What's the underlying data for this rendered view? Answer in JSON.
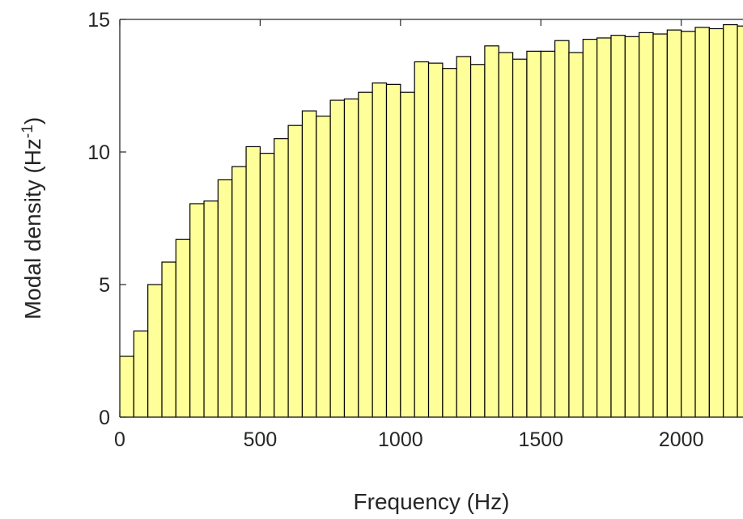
{
  "chart_data": {
    "type": "bar",
    "title": "",
    "xlabel": "Frequency (Hz)",
    "ylabel_main": "Modal density (Hz",
    "ylabel_sup": "-1",
    "ylabel_close": ")",
    "xlim": [
      0,
      2220
    ],
    "ylim": [
      0,
      15
    ],
    "bin_width": 50,
    "bar_color": "#ffff99",
    "edge_color": "#000000",
    "grid": false,
    "x_ticks": [
      0,
      500,
      1000,
      1500,
      2000
    ],
    "x_tick_labels": [
      "0",
      "500",
      "1000",
      "1500",
      "2000"
    ],
    "y_ticks": [
      0,
      5,
      10,
      15
    ],
    "y_tick_labels": [
      "0",
      "5",
      "10",
      "15"
    ],
    "x": [
      25,
      75,
      125,
      175,
      225,
      275,
      325,
      375,
      425,
      475,
      525,
      575,
      625,
      675,
      725,
      775,
      825,
      875,
      925,
      975,
      1025,
      1075,
      1125,
      1175,
      1225,
      1275,
      1325,
      1375,
      1425,
      1475,
      1525,
      1575,
      1625,
      1675,
      1725,
      1775,
      1825,
      1875,
      1925,
      1975,
      2025,
      2075,
      2125,
      2175,
      2225
    ],
    "values": [
      2.3,
      3.25,
      5.0,
      5.85,
      6.7,
      8.05,
      8.15,
      8.95,
      9.45,
      10.2,
      9.95,
      10.5,
      11.0,
      11.55,
      11.35,
      11.95,
      12.0,
      12.25,
      12.6,
      12.55,
      12.25,
      13.4,
      13.35,
      13.15,
      13.6,
      13.3,
      14.0,
      13.75,
      13.5,
      13.8,
      13.8,
      14.2,
      13.75,
      14.25,
      14.3,
      14.4,
      14.35,
      14.5,
      14.45,
      14.6,
      14.55,
      14.7,
      14.65,
      14.8,
      14.75
    ]
  }
}
